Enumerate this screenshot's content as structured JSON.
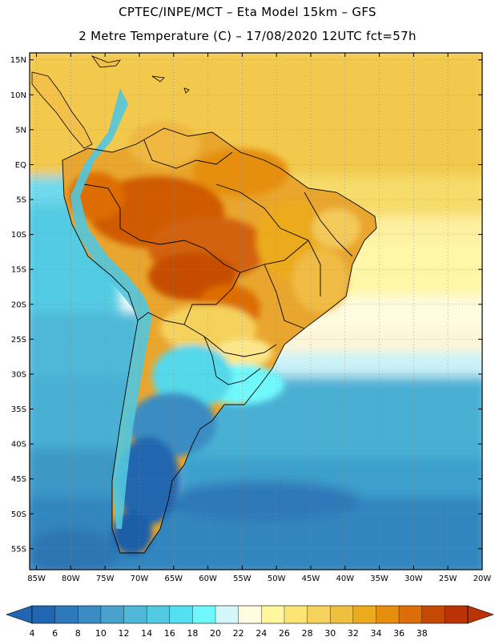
{
  "header": {
    "line1": "CPTEC/INPE/MCT –  Eta Model 15km – GFS",
    "line2": "2 Metre Temperature (C) – 17/08/2020 12UTC fct=57h"
  },
  "map": {
    "lat_labels": [
      "15N",
      "10N",
      "5N",
      "EQ",
      "5S",
      "10S",
      "15S",
      "20S",
      "25S",
      "30S",
      "35S",
      "40S",
      "45S",
      "50S",
      "55S"
    ],
    "lon_labels": [
      "85W",
      "80W",
      "75W",
      "70W",
      "65W",
      "60W",
      "55W",
      "50W",
      "45W",
      "40W",
      "35W",
      "30W",
      "25W",
      "20W"
    ],
    "extent": {
      "lon_min": -86,
      "lon_max": -20,
      "lat_min": -58,
      "lat_max": 16
    }
  },
  "colorbar": {
    "labels": [
      "4",
      "6",
      "8",
      "10",
      "12",
      "14",
      "16",
      "18",
      "20",
      "22",
      "24",
      "26",
      "28",
      "30",
      "32",
      "34",
      "36",
      "38"
    ],
    "colors": [
      "#2166b0",
      "#2d78b8",
      "#3b8cc2",
      "#48a2cc",
      "#4fb7d8",
      "#52cbe2",
      "#55e0ef",
      "#6ff8fb",
      "#d6f7fa",
      "#fffbe0",
      "#fff6a0",
      "#fbe574",
      "#f5d25c",
      "#efbf3e",
      "#ecab1c",
      "#e68e0c",
      "#dd6d06",
      "#c44a04",
      "#b93304"
    ]
  }
}
